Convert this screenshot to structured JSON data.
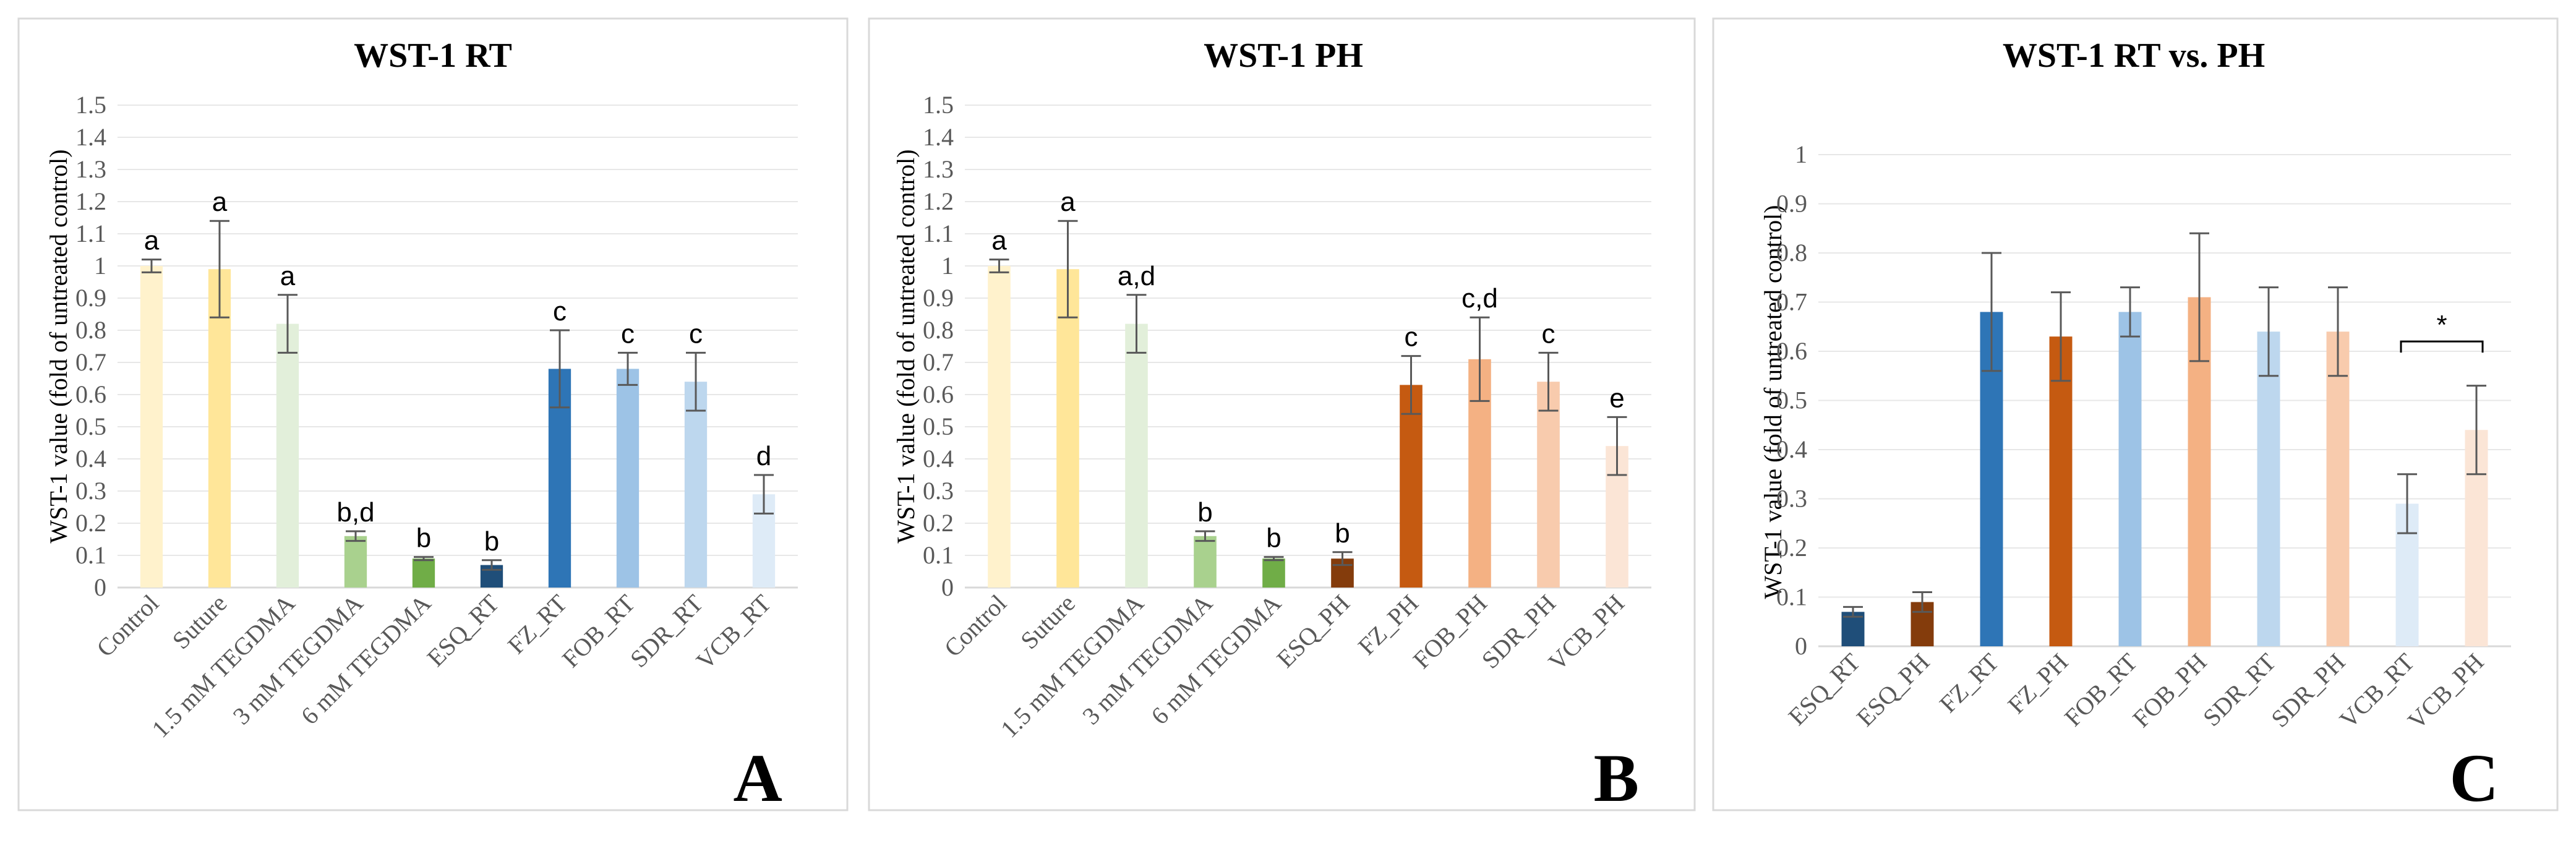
{
  "chart_data": [
    {
      "type": "bar",
      "title": "WST-1 RT",
      "ylabel": "WST-1 value (fold of untreated control)",
      "xlabel": "",
      "ylim": [
        0,
        1.5
      ],
      "ytick_step": 0.1,
      "yticks": [
        "0",
        "0.1",
        "0.2",
        "0.3",
        "0.4",
        "0.5",
        "0.6",
        "0.7",
        "0.8",
        "0.9",
        "1",
        "1.1",
        "1.2",
        "1.3",
        "1.4",
        "1.5"
      ],
      "panel_letter": "A",
      "categories": [
        "Control",
        "Suture",
        "1.5 mM TEGDMA",
        "3 mM TEGDMA",
        "6 mM TEGDMA",
        "ESQ_RT",
        "FZ_RT",
        "FOB_RT",
        "SDR_RT",
        "VCB_RT"
      ],
      "values": [
        1.0,
        0.99,
        0.82,
        0.16,
        0.09,
        0.07,
        0.68,
        0.68,
        0.64,
        0.29
      ],
      "errors": [
        0.02,
        0.15,
        0.09,
        0.015,
        0.005,
        0.015,
        0.12,
        0.05,
        0.09,
        0.06
      ],
      "colors": [
        "#fff2cc",
        "#ffe699",
        "#e2efda",
        "#a9d18e",
        "#70ad47",
        "#1f4e79",
        "#2e75b6",
        "#9dc3e6",
        "#bdd7ee",
        "#deebf7"
      ],
      "labels": [
        "a",
        "a",
        "a",
        "b,d",
        "b",
        "b",
        "c",
        "c",
        "c",
        "d"
      ]
    },
    {
      "type": "bar",
      "title": "WST-1 PH",
      "ylabel": "WST-1 value (fold of untreated control)",
      "xlabel": "",
      "ylim": [
        0,
        1.5
      ],
      "ytick_step": 0.1,
      "yticks": [
        "0",
        "0.1",
        "0.2",
        "0.3",
        "0.4",
        "0.5",
        "0.6",
        "0.7",
        "0.8",
        "0.9",
        "1",
        "1.1",
        "1.2",
        "1.3",
        "1.4",
        "1.5"
      ],
      "panel_letter": "B",
      "categories": [
        "Control",
        "Suture",
        "1.5 mM TEGDMA",
        "3 mM TEGDMA",
        "6 mM TEGDMA",
        "ESQ_PH",
        "FZ_PH",
        "FOB_PH",
        "SDR_PH",
        "VCB_PH"
      ],
      "values": [
        1.0,
        0.99,
        0.82,
        0.16,
        0.09,
        0.09,
        0.63,
        0.71,
        0.64,
        0.44
      ],
      "errors": [
        0.02,
        0.15,
        0.09,
        0.015,
        0.005,
        0.02,
        0.09,
        0.13,
        0.09,
        0.09
      ],
      "colors": [
        "#fff2cc",
        "#ffe699",
        "#e2efda",
        "#a9d18e",
        "#70ad47",
        "#843c0c",
        "#c55a11",
        "#f4b183",
        "#f8cbad",
        "#fbe5d6"
      ],
      "labels": [
        "a",
        "a",
        "a,d",
        "b",
        "b",
        "b",
        "c",
        "c,d",
        "c",
        "e"
      ]
    },
    {
      "type": "bar",
      "title": "WST-1 RT vs. PH",
      "ylabel": "WST-1 value (fold of untreated control)",
      "xlabel": "",
      "ylim": [
        0,
        1
      ],
      "ytick_step": 0.1,
      "yticks": [
        "0",
        "0.1",
        "0.2",
        "0.3",
        "0.4",
        "0.5",
        "0.6",
        "0.7",
        "0.8",
        "0.9",
        "1"
      ],
      "panel_letter": "C",
      "categories": [
        "ESQ_RT",
        "ESQ_PH",
        "FZ_RT",
        "FZ_PH",
        "FOB_RT",
        "FOB_PH",
        "SDR_RT",
        "SDR_PH",
        "VCB_RT",
        "VCB_PH"
      ],
      "values": [
        0.07,
        0.09,
        0.68,
        0.63,
        0.68,
        0.71,
        0.64,
        0.64,
        0.29,
        0.44
      ],
      "errors": [
        0.01,
        0.02,
        0.12,
        0.09,
        0.05,
        0.13,
        0.09,
        0.09,
        0.06,
        0.09
      ],
      "colors": [
        "#1f4e79",
        "#843c0c",
        "#2e75b6",
        "#c55a11",
        "#9dc3e6",
        "#f4b183",
        "#bdd7ee",
        "#f8cbad",
        "#deebf7",
        "#fbe5d6"
      ],
      "labels": [
        "",
        "",
        "",
        "",
        "",
        "",
        "",
        "",
        "",
        ""
      ],
      "annotation": "*"
    }
  ]
}
